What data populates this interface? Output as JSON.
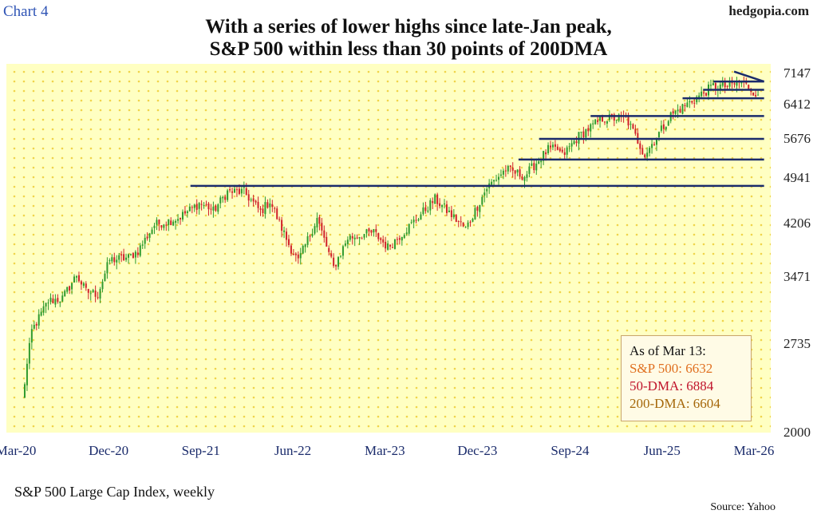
{
  "header": {
    "chart_tag": "Chart 4",
    "brand": "hedgopia.com",
    "title_line1": "With a series of lower highs since late-Jan peak,",
    "title_line2": "S&P 500 within less than 30 points of 200DMA"
  },
  "footer": {
    "subtitle": "S&P 500 Large Cap Index, weekly",
    "source": "Source: Yahoo"
  },
  "infobox": {
    "as_of": "As of Mar 13:",
    "sp500": "S&P 500: 6632",
    "dma50": "50-DMA: 6884",
    "dma200": "200-DMA: 6604"
  },
  "colors": {
    "plot_bg": "#ffffc2",
    "dots": "#f0d44a",
    "up_candle": "#2e9a2e",
    "down_candle": "#d0202a",
    "lines": "#1a2b6b"
  },
  "chart_data": {
    "type": "candlestick",
    "title": "With a series of lower highs since late-Jan peak, S&P 500 within less than 30 points of 200DMA",
    "subtitle": "S&P 500 Large Cap Index, weekly",
    "ylim": [
      2000,
      7400
    ],
    "yscale": "log",
    "y_ticks": [
      "7147",
      "6412",
      "5676",
      "4941",
      "4206",
      "3471",
      "2735",
      "2000"
    ],
    "y_tick_values": [
      7147,
      6412,
      5676,
      4941,
      4206,
      3471,
      2735,
      2000
    ],
    "x_ticks": [
      "Mar-20",
      "Dec-20",
      "Sep-21",
      "Jun-22",
      "Mar-23",
      "Dec-23",
      "Sep-24",
      "Jun-25",
      "Mar-26"
    ],
    "x_tick_dates": [
      "2020-03-01",
      "2020-12-01",
      "2021-09-01",
      "2022-06-01",
      "2023-03-01",
      "2023-12-01",
      "2024-09-01",
      "2025-06-01",
      "2026-03-01"
    ],
    "grid": "dotted",
    "x_range": [
      "2020-03-01",
      "2026-03-31"
    ],
    "series": [
      {
        "points": [
          [
            "2020-03-20",
            2250
          ],
          [
            "2020-04-17",
            2870
          ],
          [
            "2020-06-05",
            3190
          ],
          [
            "2020-07-17",
            3220
          ],
          [
            "2020-08-28",
            3500
          ],
          [
            "2020-09-25",
            3300
          ],
          [
            "2020-10-30",
            3270
          ],
          [
            "2020-12-04",
            3690
          ],
          [
            "2021-01-29",
            3720
          ],
          [
            "2021-02-26",
            3810
          ],
          [
            "2021-04-16",
            4180
          ],
          [
            "2021-06-25",
            4280
          ],
          [
            "2021-08-27",
            4510
          ],
          [
            "2021-09-24",
            4450
          ],
          [
            "2021-10-08",
            4390
          ],
          [
            "2021-11-19",
            4700
          ],
          [
            "2022-01-07",
            4700
          ],
          [
            "2022-02-25",
            4380
          ],
          [
            "2022-03-25",
            4550
          ],
          [
            "2022-05-20",
            3900
          ],
          [
            "2022-06-17",
            3670
          ],
          [
            "2022-08-12",
            4280
          ],
          [
            "2022-09-30",
            3590
          ],
          [
            "2022-11-11",
            3990
          ],
          [
            "2023-01-27",
            4070
          ],
          [
            "2023-03-10",
            3860
          ],
          [
            "2023-05-19",
            4190
          ],
          [
            "2023-07-28",
            4580
          ],
          [
            "2023-10-27",
            4120
          ],
          [
            "2023-12-29",
            4770
          ],
          [
            "2024-02-23",
            5090
          ],
          [
            "2024-04-19",
            4970
          ],
          [
            "2024-06-28",
            5460
          ],
          [
            "2024-07-26",
            5460
          ],
          [
            "2024-08-09",
            5340
          ],
          [
            "2024-09-27",
            5730
          ],
          [
            "2024-12-06",
            6090
          ],
          [
            "2025-02-14",
            6110
          ],
          [
            "2025-04-11",
            5360
          ],
          [
            "2025-06-27",
            6170
          ],
          [
            "2025-09-26",
            6640
          ],
          [
            "2025-10-31",
            6840
          ],
          [
            "2025-12-12",
            6830
          ],
          [
            "2026-01-23",
            6940
          ],
          [
            "2026-03-13",
            6632
          ]
        ]
      }
    ],
    "horizontal_levels": [
      {
        "y": 4800,
        "from": "2021-08-01",
        "to": "2026-03-31"
      },
      {
        "y": 5270,
        "from": "2024-04-01",
        "to": "2026-03-31"
      },
      {
        "y": 5670,
        "from": "2024-06-01",
        "to": "2026-03-31"
      },
      {
        "y": 6150,
        "from": "2024-11-01",
        "to": "2026-03-31"
      },
      {
        "y": 6550,
        "from": "2025-08-01",
        "to": "2026-03-31"
      },
      {
        "y": 6750,
        "from": "2025-10-01",
        "to": "2026-03-31"
      },
      {
        "y": 6950,
        "from": "2025-11-01",
        "to": "2026-03-31"
      }
    ],
    "trendline": {
      "from": [
        "2026-01-01",
        7200
      ],
      "to": [
        "2026-03-31",
        6950
      ]
    }
  }
}
